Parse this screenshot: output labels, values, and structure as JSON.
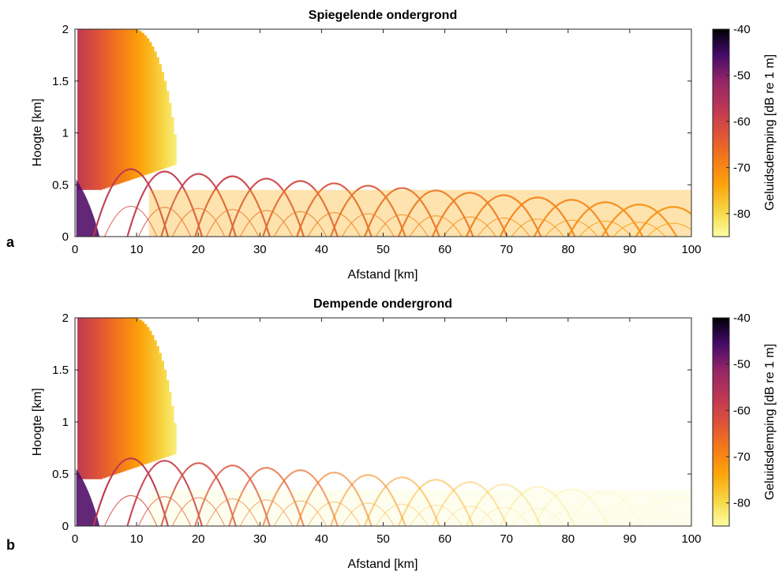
{
  "chart_data": [
    {
      "panel_label": "a",
      "type": "heatmap",
      "title": "Spiegelende ondergrond",
      "xlabel": "Afstand [km]",
      "ylabel": "Hoogte [km]",
      "xlim": [
        0,
        100
      ],
      "ylim": [
        0,
        2
      ],
      "xticks": [
        "0",
        "10",
        "20",
        "30",
        "40",
        "50",
        "60",
        "70",
        "80",
        "90",
        "100"
      ],
      "yticks": [
        "0",
        "0.5",
        "1",
        "1.5",
        "2"
      ],
      "colorbar": {
        "label": "Geluidsdemping [dB re 1 m]",
        "range": [
          -85,
          -40
        ],
        "ticks": [
          "-40",
          "-50",
          "-60",
          "-70",
          "-80"
        ],
        "colormap": "inferno-reversed"
      },
      "pattern": {
        "ground": "reflecting",
        "source_height_km": 0.05,
        "near_field_extent_km": 17,
        "ray_arch_peak_height_km": 0.65,
        "arch_spacing_km": 5.5,
        "far_field_level_dB": -75
      }
    },
    {
      "panel_label": "b",
      "type": "heatmap",
      "title": "Dempende ondergrond",
      "xlabel": "Afstand [km]",
      "ylabel": "Hoogte [km]",
      "xlim": [
        0,
        100
      ],
      "ylim": [
        0,
        2
      ],
      "xticks": [
        "0",
        "10",
        "20",
        "30",
        "40",
        "50",
        "60",
        "70",
        "80",
        "90",
        "100"
      ],
      "yticks": [
        "0",
        "0.5",
        "1",
        "1.5",
        "2"
      ],
      "colorbar": {
        "label": "Geluidsdemping [dB re 1 m]",
        "range": [
          -85,
          -40
        ],
        "ticks": [
          "-40",
          "-50",
          "-60",
          "-70",
          "-80"
        ],
        "colormap": "inferno-reversed"
      },
      "pattern": {
        "ground": "absorbing",
        "source_height_km": 0.05,
        "near_field_extent_km": 17,
        "ray_arch_peak_height_km": 0.65,
        "arch_spacing_km": 5.5,
        "far_field_level_dB": -84
      }
    }
  ]
}
